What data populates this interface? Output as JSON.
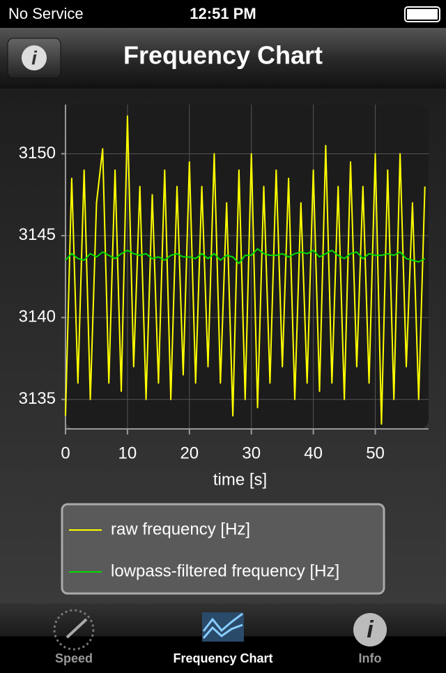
{
  "ui": {
    "carrier": "No Service",
    "time": "12:51 PM",
    "nav_title": "Frequency Chart",
    "tabs": [
      "Speed",
      "Frequency Chart",
      "Info"
    ]
  },
  "chart_data": {
    "type": "line",
    "x_label": "time [s]",
    "x": [
      0,
      1,
      2,
      3,
      4,
      5,
      6,
      7,
      8,
      9,
      10,
      11,
      12,
      13,
      14,
      15,
      16,
      17,
      18,
      19,
      20,
      21,
      22,
      23,
      24,
      25,
      26,
      27,
      28,
      29,
      30,
      31,
      32,
      33,
      34,
      35,
      36,
      37,
      38,
      39,
      40,
      41,
      42,
      43,
      44,
      45,
      46,
      47,
      48,
      49,
      50,
      51,
      52,
      53,
      54,
      55,
      56,
      57,
      58
    ],
    "series": [
      {
        "name": "raw frequency [Hz]",
        "color": "#ffff00",
        "values": [
          3134,
          3148.5,
          3136,
          3149,
          3135,
          3147,
          3150.3,
          3136,
          3149,
          3135.5,
          3152.3,
          3137,
          3148,
          3135,
          3147.5,
          3136,
          3149,
          3135,
          3148,
          3136.5,
          3149.5,
          3136,
          3148,
          3137,
          3150,
          3136,
          3147,
          3134,
          3149,
          3135,
          3150,
          3134.5,
          3148,
          3136,
          3149,
          3137,
          3148.5,
          3135,
          3147,
          3136,
          3149,
          3135.5,
          3150.5,
          3136,
          3148,
          3135,
          3149.5,
          3137,
          3148,
          3136,
          3150,
          3133.5,
          3149,
          3135,
          3150,
          3137,
          3147,
          3135,
          3148
        ]
      },
      {
        "name": "lowpass-filtered frequency [Hz]",
        "color": "#00dd00",
        "values": [
          3143.5,
          3143.9,
          3143.6,
          3143.5,
          3143.9,
          3143.7,
          3144.0,
          3143.8,
          3143.6,
          3143.9,
          3144.1,
          3143.9,
          3143.8,
          3143.9,
          3143.6,
          3143.7,
          3143.5,
          3143.8,
          3143.9,
          3143.7,
          3143.7,
          3143.6,
          3143.9,
          3143.6,
          3143.9,
          3143.5,
          3143.8,
          3143.7,
          3143.3,
          3143.8,
          3143.8,
          3144.2,
          3143.9,
          3143.8,
          3143.8,
          3143.9,
          3143.7,
          3143.9,
          3144.0,
          3143.9,
          3144.1,
          3143.7,
          3143.9,
          3144.1,
          3143.8,
          3143.6,
          3143.9,
          3144.0,
          3143.6,
          3143.9,
          3143.8,
          3143.8,
          3143.9,
          3143.8,
          3144.0,
          3143.6,
          3143.5,
          3143.4,
          3143.6
        ]
      }
    ],
    "xlim": [
      0,
      58.6
    ],
    "xticks": [
      0,
      10,
      20,
      30,
      40,
      50
    ],
    "ylim": [
      3133.2,
      3153
    ],
    "yticks": [
      3135,
      3140,
      3145,
      3150
    ],
    "grid": true,
    "legend": "bottom"
  }
}
